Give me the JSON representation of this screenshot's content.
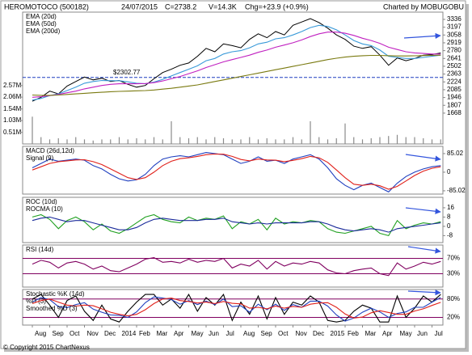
{
  "header": {
    "title": "HEROMOTOCO (500182)",
    "date": "24/07/2015",
    "close": "C=2738.2",
    "volume": "V=14.3K",
    "change": "Chg=+23.9 (+0.9%)",
    "credit": "Charted by MOBUGOBU"
  },
  "footer": "© Copyright 2015 ChartNexus",
  "chart_data": [
    {
      "type": "line",
      "ylim": [
        1120,
        3465
      ],
      "yticks": [
        3336,
        3197,
        3058,
        2919,
        2780,
        2641,
        2502,
        2363,
        2224,
        2085,
        1946,
        1807,
        1668
      ],
      "annotation": {
        "value": 2302.77,
        "label": "$2302.77",
        "color": "#1f3fbf"
      },
      "series": [
        {
          "color": "#000000",
          "values": [
            1880,
            1950,
            2060,
            2010,
            2150,
            2230,
            2310,
            2260,
            2290,
            2230,
            2250,
            2180,
            2130,
            2160,
            2280,
            2390,
            2450,
            2520,
            2560,
            2680,
            2820,
            2760,
            2900,
            2870,
            2830,
            2980,
            3080,
            3010,
            3120,
            3060,
            3230,
            3290,
            3350,
            3280,
            3180,
            3060,
            2980,
            2860,
            2820,
            2850,
            2700,
            2520,
            2650,
            2600,
            2640,
            2700,
            2710,
            2738.2
          ]
        },
        {
          "name": "EMA (20d)",
          "color": "#3a9ad9",
          "values": [
            1900,
            1930,
            1980,
            2010,
            2070,
            2130,
            2200,
            2230,
            2250,
            2245,
            2245,
            2225,
            2200,
            2190,
            2220,
            2270,
            2330,
            2390,
            2450,
            2510,
            2600,
            2640,
            2720,
            2760,
            2780,
            2830,
            2900,
            2930,
            2990,
            3010,
            3060,
            3120,
            3190,
            3230,
            3210,
            3150,
            3060,
            2960,
            2900,
            2870,
            2790,
            2680,
            2660,
            2640,
            2640,
            2660,
            2680,
            2700
          ]
        },
        {
          "name": "EMA (50d)",
          "color": "#c020c0",
          "values": [
            1950,
            1960,
            1980,
            2000,
            2030,
            2060,
            2100,
            2130,
            2160,
            2180,
            2190,
            2190,
            2190,
            2195,
            2210,
            2240,
            2280,
            2320,
            2370,
            2420,
            2480,
            2530,
            2580,
            2620,
            2660,
            2700,
            2750,
            2790,
            2840,
            2880,
            2920,
            2970,
            3030,
            3080,
            3110,
            3110,
            3090,
            3050,
            3000,
            2960,
            2910,
            2840,
            2800,
            2760,
            2740,
            2730,
            2720,
            2720
          ]
        },
        {
          "name": "EMA (200d)",
          "color": "#7a7a10",
          "values": [
            1990,
            1985,
            1985,
            1990,
            2000,
            2010,
            2020,
            2030,
            2040,
            2050,
            2055,
            2060,
            2065,
            2070,
            2080,
            2095,
            2110,
            2130,
            2150,
            2170,
            2200,
            2230,
            2260,
            2290,
            2320,
            2350,
            2380,
            2410,
            2440,
            2470,
            2500,
            2530,
            2560,
            2590,
            2620,
            2645,
            2665,
            2680,
            2690,
            2695,
            2695,
            2690,
            2685,
            2685,
            2688,
            2692,
            2696,
            2700
          ]
        }
      ],
      "volume": {
        "color": "#8a8a8a",
        "ylim": [
          0,
          5.8
        ],
        "yticks": [
          {
            "value": 2.57,
            "label": "2.57M"
          },
          {
            "value": 2.06,
            "label": "2.06M"
          },
          {
            "value": 1.54,
            "label": "1.54M"
          },
          {
            "value": 1.03,
            "label": "1.03M"
          },
          {
            "value": 0.51,
            "label": "0.51M"
          }
        ],
        "values": [
          1.2,
          0.3,
          0.2,
          0.25,
          0.2,
          0.3,
          0.2,
          0.15,
          0.2,
          0.2,
          0.3,
          0.2,
          0.25,
          0.2,
          0.3,
          0.2,
          1.0,
          0.3,
          0.25,
          0.3,
          0.2,
          0.3,
          0.25,
          0.2,
          0.2,
          0.3,
          0.2,
          0.25,
          0.2,
          0.2,
          0.3,
          0.2,
          1.0,
          0.3,
          0.2,
          0.25,
          0.9,
          0.3,
          0.2,
          0.25,
          0.3,
          0.35,
          0.4,
          0.3,
          0.3,
          0.25,
          0.2,
          0.2
        ]
      }
    },
    {
      "type": "line",
      "ylim": [
        -100,
        118
      ],
      "yticks": [
        85.02,
        0,
        -85.02
      ],
      "series": [
        {
          "name": "MACD (26d,12d)",
          "color": "#1f3fbf",
          "values": [
            20,
            40,
            60,
            50,
            55,
            60,
            55,
            30,
            15,
            -10,
            -30,
            -40,
            -35,
            -10,
            30,
            60,
            70,
            75,
            70,
            80,
            90,
            85,
            80,
            60,
            40,
            50,
            70,
            50,
            55,
            40,
            60,
            70,
            80,
            60,
            20,
            -30,
            -60,
            -80,
            -60,
            -50,
            -70,
            -90,
            -50,
            -20,
            0,
            15,
            25,
            30
          ]
        },
        {
          "name": "Signal (9)",
          "color": "#e0201a",
          "values": [
            10,
            25,
            40,
            48,
            52,
            56,
            57,
            48,
            35,
            15,
            -5,
            -25,
            -33,
            -25,
            0,
            30,
            50,
            62,
            66,
            72,
            80,
            83,
            82,
            72,
            58,
            52,
            60,
            56,
            55,
            48,
            54,
            62,
            72,
            66,
            45,
            10,
            -25,
            -55,
            -60,
            -55,
            -62,
            -78,
            -65,
            -40,
            -15,
            5,
            18,
            25
          ]
        }
      ]
    },
    {
      "type": "line",
      "ylim": [
        -14,
        25
      ],
      "yticks": [
        16,
        8,
        0,
        -8
      ],
      "series": [
        {
          "name": "ROC (10d)",
          "color": "#20a020",
          "values": [
            8,
            10,
            6,
            -2,
            5,
            8,
            4,
            -3,
            2,
            -4,
            -6,
            -2,
            3,
            8,
            10,
            6,
            4,
            3,
            8,
            5,
            7,
            6,
            9,
            -2,
            4,
            2,
            6,
            -3,
            7,
            2,
            4,
            3,
            5,
            4,
            -2,
            -5,
            -6,
            -4,
            -2,
            0,
            -6,
            -8,
            5,
            -2,
            1,
            3,
            2,
            4
          ]
        },
        {
          "name": "ROCMA (10)",
          "color": "#1a2a9a",
          "values": [
            5,
            7,
            8,
            6,
            4,
            5,
            5,
            3,
            1,
            -1,
            -3,
            -3,
            -1,
            3,
            6,
            7,
            6,
            5,
            5,
            5,
            6,
            6,
            7,
            4,
            3,
            2,
            3,
            2,
            3,
            3,
            3,
            3,
            4,
            4,
            2,
            -1,
            -3,
            -4,
            -3,
            -2,
            -3,
            -5,
            -2,
            -1,
            0,
            1,
            2,
            3
          ]
        }
      ]
    },
    {
      "type": "line",
      "ylim": [
        -5,
        105
      ],
      "grid": true,
      "grid_color": "#800060",
      "yticks": [
        {
          "value": 70,
          "label": "70%"
        },
        {
          "value": 30,
          "label": "30%"
        }
      ],
      "series": [
        {
          "name": "RSI (14d)",
          "color": "#800060",
          "values": [
            55,
            65,
            60,
            45,
            58,
            62,
            55,
            42,
            50,
            38,
            35,
            45,
            55,
            68,
            72,
            60,
            62,
            58,
            68,
            60,
            65,
            62,
            70,
            45,
            55,
            50,
            65,
            42,
            62,
            50,
            58,
            55,
            62,
            58,
            40,
            32,
            30,
            38,
            42,
            45,
            30,
            25,
            58,
            42,
            50,
            60,
            55,
            62
          ]
        }
      ]
    },
    {
      "type": "line",
      "ylim": [
        -5,
        111
      ],
      "grid": true,
      "grid_color": "#800060",
      "yticks": [
        {
          "value": 80,
          "label": "80%"
        },
        {
          "value": 20,
          "label": "20%"
        }
      ],
      "categories": [
        "Aug",
        null,
        "Sep",
        null,
        "Oct",
        null,
        "Nov",
        null,
        "Dec",
        null,
        "2014",
        null,
        "Feb",
        null,
        "Mar",
        null,
        "Apr",
        null,
        "May",
        null,
        "Jun",
        null,
        "Jul",
        null,
        "Aug",
        null,
        "Sep",
        null,
        "Oct",
        null,
        "Nov",
        null,
        "Dec",
        null,
        "2015",
        null,
        "Feb",
        null,
        "Mar",
        null,
        "Apr",
        null,
        "May",
        null,
        "Jun",
        null,
        "Jul",
        null
      ],
      "series": [
        {
          "name": "Stochastic %K (14d)",
          "color": "#000000",
          "values": [
            80,
            95,
            60,
            20,
            75,
            90,
            40,
            10,
            60,
            15,
            5,
            40,
            70,
            95,
            95,
            60,
            80,
            50,
            95,
            40,
            85,
            60,
            95,
            10,
            70,
            30,
            90,
            15,
            85,
            30,
            70,
            60,
            90,
            70,
            10,
            5,
            10,
            40,
            60,
            50,
            5,
            5,
            90,
            20,
            50,
            90,
            70,
            95
          ]
        },
        {
          "name": "%D (3)",
          "color": "#1f3fbf",
          "values": [
            70,
            85,
            78,
            55,
            52,
            62,
            68,
            47,
            37,
            28,
            27,
            20,
            38,
            68,
            87,
            83,
            78,
            63,
            75,
            62,
            73,
            62,
            80,
            55,
            58,
            37,
            63,
            45,
            63,
            43,
            62,
            53,
            73,
            73,
            57,
            28,
            8,
            18,
            37,
            50,
            38,
            20,
            33,
            38,
            53,
            53,
            70,
            85
          ]
        },
        {
          "name": "Smoothed %D (3)",
          "color": "#e0201a",
          "values": [
            65,
            75,
            80,
            70,
            60,
            57,
            60,
            58,
            48,
            37,
            30,
            25,
            30,
            45,
            65,
            80,
            83,
            75,
            72,
            67,
            70,
            65,
            72,
            66,
            64,
            50,
            53,
            48,
            57,
            50,
            56,
            53,
            63,
            67,
            68,
            53,
            31,
            18,
            21,
            35,
            42,
            36,
            30,
            30,
            41,
            48,
            59,
            69
          ]
        }
      ]
    }
  ]
}
